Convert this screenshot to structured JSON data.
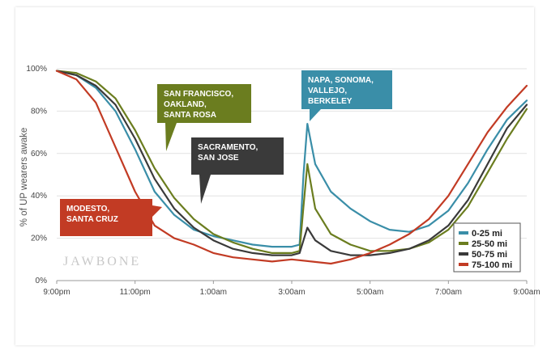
{
  "chart_data": {
    "type": "line",
    "title": "",
    "xlabel": "",
    "ylabel": "% of UP wearers awake",
    "x_tick_labels": [
      "9:00pm",
      "11:00pm",
      "1:00am",
      "3:00am",
      "5:00am",
      "7:00am",
      "9:00am"
    ],
    "y_tick_labels": [
      "0%",
      "20%",
      "40%",
      "60%",
      "80%",
      "100%"
    ],
    "xlim": [
      0,
      12
    ],
    "ylim": [
      0,
      100
    ],
    "grid": true,
    "legend_position": "bottom-right",
    "x_unit": "hours after 9:00pm",
    "series": [
      {
        "name": "0-25 mi",
        "color": "#3a8ea8",
        "x": [
          0,
          0.5,
          1,
          1.5,
          2,
          2.5,
          3,
          3.5,
          4,
          4.5,
          5,
          5.5,
          6,
          6.2,
          6.3,
          6.4,
          6.6,
          7,
          7.5,
          8,
          8.5,
          9,
          9.5,
          10,
          10.5,
          11,
          11.5,
          12
        ],
        "values": [
          99,
          97,
          91,
          80,
          62,
          42,
          31,
          24,
          21,
          19,
          17,
          16,
          16,
          17,
          50,
          74,
          55,
          42,
          34,
          28,
          24,
          23,
          26,
          33,
          46,
          62,
          76,
          85
        ]
      },
      {
        "name": "25-50 mi",
        "color": "#6b7d1f",
        "x": [
          0,
          0.5,
          1,
          1.5,
          2,
          2.5,
          3,
          3.5,
          4,
          4.5,
          5,
          5.5,
          6,
          6.2,
          6.3,
          6.4,
          6.6,
          7,
          7.5,
          8,
          8.5,
          9,
          9.5,
          10,
          10.5,
          11,
          11.5,
          12
        ],
        "values": [
          99,
          98,
          94,
          86,
          71,
          53,
          39,
          29,
          22,
          18,
          15,
          13,
          13,
          14,
          35,
          55,
          34,
          22,
          17,
          14,
          14,
          15,
          18,
          24,
          35,
          51,
          67,
          81
        ]
      },
      {
        "name": "50-75 mi",
        "color": "#3a3a3a",
        "x": [
          0,
          0.5,
          1,
          1.5,
          2,
          2.5,
          3,
          3.5,
          4,
          4.5,
          5,
          5.5,
          6,
          6.2,
          6.3,
          6.4,
          6.6,
          7,
          7.5,
          8,
          8.5,
          9,
          9.5,
          10,
          10.5,
          11,
          11.5,
          12
        ],
        "values": [
          99,
          97,
          92,
          83,
          67,
          48,
          34,
          25,
          19,
          15,
          13,
          12,
          12,
          13,
          19,
          25,
          19,
          14,
          12,
          12,
          13,
          15,
          19,
          26,
          38,
          55,
          72,
          83
        ]
      },
      {
        "name": "75-100 mi",
        "color": "#c23b24",
        "x": [
          0,
          0.5,
          1,
          1.5,
          2,
          2.5,
          3,
          3.5,
          4,
          4.5,
          5,
          5.5,
          6,
          6.5,
          7,
          7.5,
          8,
          8.5,
          9,
          9.5,
          10,
          10.5,
          11,
          11.5,
          12
        ],
        "values": [
          99,
          95,
          84,
          63,
          42,
          26,
          20,
          17,
          13,
          11,
          10,
          9,
          10,
          9,
          8,
          10,
          13,
          17,
          22,
          29,
          40,
          55,
          70,
          82,
          92
        ]
      }
    ],
    "annotations": [
      {
        "id": "sf",
        "series": "25-50 mi",
        "text_lines": [
          "SAN FRANCISCO,",
          "OAKLAND,",
          "SANTA ROSA"
        ],
        "color": "#6b7d1f"
      },
      {
        "id": "sac",
        "series": "50-75 mi",
        "text_lines": [
          "SACRAMENTO,",
          "SAN JOSE"
        ],
        "color": "#3a3a3a"
      },
      {
        "id": "napa",
        "series": "0-25 mi",
        "text_lines": [
          "NAPA, SONOMA,",
          "VALLEJO,",
          "BERKELEY"
        ],
        "color": "#3a8ea8"
      },
      {
        "id": "modesto",
        "series": "75-100 mi",
        "text_lines": [
          "MODESTO,",
          "SANTA CRUZ"
        ],
        "color": "#c23b24"
      }
    ]
  },
  "watermark": "JAWBONE"
}
